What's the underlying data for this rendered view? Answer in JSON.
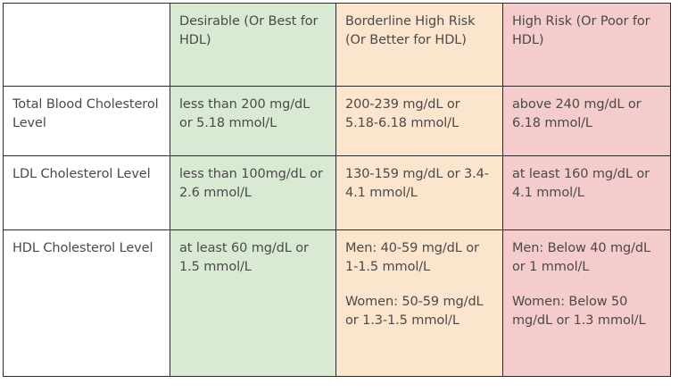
{
  "table": {
    "header": {
      "corner": "",
      "desirable": "Desirable (Or Best for HDL)",
      "borderline": "Borderline High Risk (Or Better for HDL)",
      "high": "High Risk (Or Poor for HDL)"
    },
    "rows": [
      {
        "label": "Total Blood Cholesterol Level",
        "desirable": "less than 200 mg/dL or 5.18 mmol/L",
        "borderline": "200-239 mg/dL or 5.18-6.18 mmol/L",
        "high": "above 240 mg/dL or 6.18 mmol/L"
      },
      {
        "label": "LDL Cholesterol Level",
        "desirable": "less than 100mg/dL or 2.6 mmol/L",
        "borderline": "130-159 mg/dL or 3.4-4.1 mmol/L",
        "high": "at least 160 mg/dL or 4.1 mmol/L"
      },
      {
        "label": "HDL Cholesterol Level",
        "desirable": "at least 60 mg/dL or 1.5 mmol/L",
        "borderline_men": "Men: 40-59 mg/dL or 1-1.5 mmol/L",
        "borderline_women": "Women: 50-59 mg/dL or 1.3-1.5 mmol/L",
        "high_men": "Men: Below 40 mg/dL or 1 mmol/L",
        "high_women": "Women: Below 50 mg/dL or 1.3 mmol/L"
      }
    ],
    "colors": {
      "desirable": "#d9ead3",
      "borderline": "#fce5cd",
      "high": "#f4cccc",
      "border": "#2b2b2b",
      "text": "#4a4a4a"
    }
  }
}
